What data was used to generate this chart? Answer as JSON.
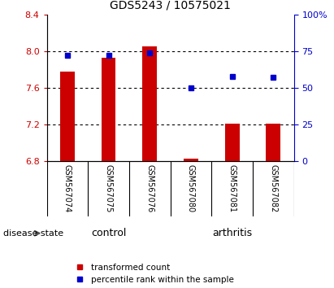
{
  "title": "GDS5243 / 10575021",
  "samples": [
    "GSM567074",
    "GSM567075",
    "GSM567076",
    "GSM567080",
    "GSM567081",
    "GSM567082"
  ],
  "bar_color": "#CC0000",
  "dot_color": "#0000CC",
  "ylim_left": [
    6.8,
    8.4
  ],
  "ylim_right": [
    0,
    100
  ],
  "yticks_left": [
    6.8,
    7.2,
    7.6,
    8.0,
    8.4
  ],
  "yticks_right": [
    0,
    25,
    50,
    75,
    100
  ],
  "ytick_labels_right": [
    "0",
    "25",
    "50",
    "75",
    "100%"
  ],
  "red_bar_values": [
    7.78,
    7.93,
    8.05,
    6.83,
    7.21,
    7.21
  ],
  "blue_dot_values": [
    72,
    72,
    74,
    50,
    58,
    57
  ],
  "bar_base": 6.8,
  "legend_items": [
    "transformed count",
    "percentile rank within the sample"
  ],
  "disease_state_label": "disease state",
  "bar_color_hex": "#CC0000",
  "dot_color_hex": "#0000CC",
  "control_color": "#ccffcc",
  "arthritis_color": "#66ee66",
  "label_area_color": "#cccccc",
  "background_color": "#ffffff",
  "grid_color": "#000000",
  "title_fontsize": 10,
  "tick_fontsize": 8,
  "label_fontsize": 7,
  "legend_fontsize": 7.5
}
